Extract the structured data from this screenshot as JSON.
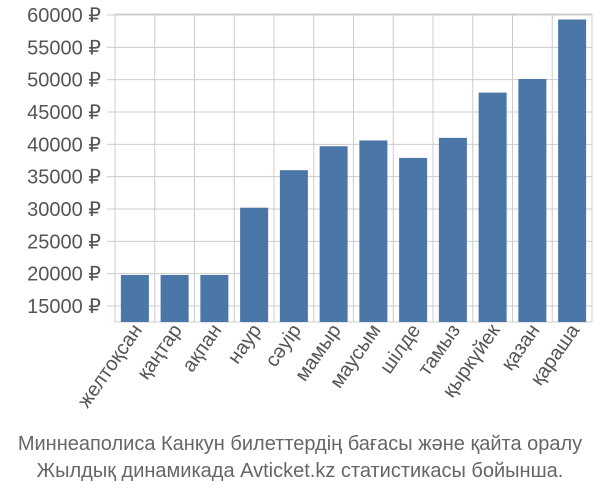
{
  "chart_data": {
    "type": "bar",
    "categories": [
      "желтоқсан",
      "қаңтар",
      "ақпан",
      "наур",
      "сәуір",
      "мамыр",
      "маусым",
      "шілде",
      "тамыз",
      "қыркүйек",
      "қазан",
      "қараша"
    ],
    "values": [
      19800,
      19800,
      19800,
      30200,
      36000,
      39700,
      40600,
      37900,
      41000,
      48000,
      50100,
      59300
    ],
    "ylim": [
      15000,
      60000
    ],
    "yticks": [
      15000,
      20000,
      25000,
      30000,
      35000,
      40000,
      45000,
      50000,
      55000,
      60000
    ],
    "ytick_suffix": " ₽",
    "grid": true,
    "bar_color": "#4a76a8"
  },
  "caption": {
    "line1": "Миннеаполиса Канкун билеттердің бағасы және қайта оралу",
    "line2": "Жылдық динамикада Avticket.kz статистикасы бойынша."
  }
}
